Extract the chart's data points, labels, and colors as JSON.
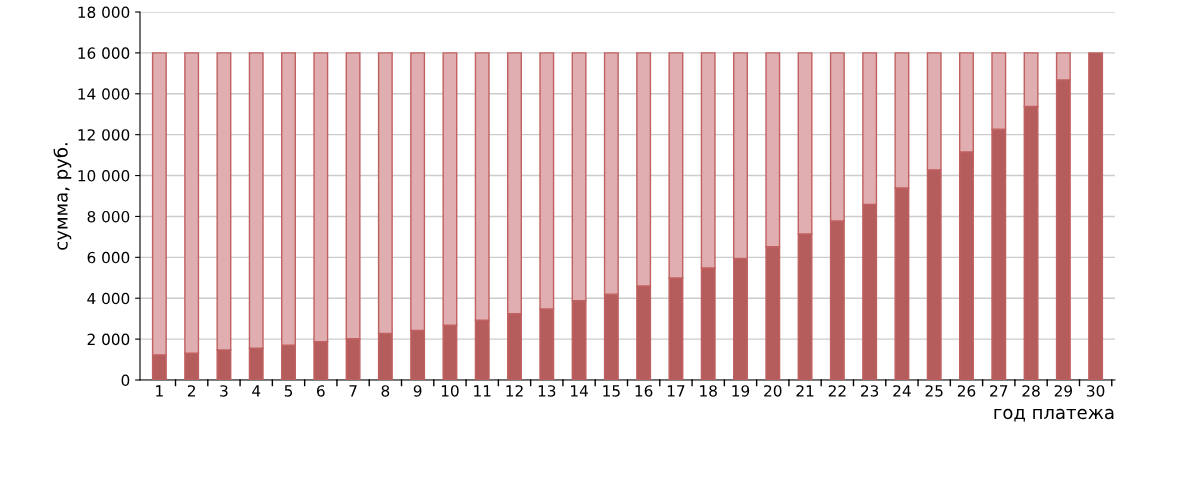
{
  "chart_data": {
    "type": "bar",
    "stacked": true,
    "xlabel": "год платежа",
    "ylabel": "сумма, руб.",
    "categories": [
      "1",
      "2",
      "3",
      "4",
      "5",
      "6",
      "7",
      "8",
      "9",
      "10",
      "11",
      "12",
      "13",
      "14",
      "15",
      "16",
      "17",
      "18",
      "19",
      "20",
      "21",
      "22",
      "23",
      "24",
      "25",
      "26",
      "27",
      "28",
      "29",
      "30"
    ],
    "series": [
      {
        "color": "#b55d5d",
        "values": [
          1230,
          1310,
          1470,
          1550,
          1700,
          1870,
          2020,
          2280,
          2430,
          2680,
          2920,
          3240,
          3470,
          3880,
          4200,
          4600,
          4990,
          5480,
          5950,
          6520,
          7140,
          7780,
          8590,
          9390,
          10280,
          11150,
          12270,
          13380,
          14680,
          16000
        ]
      },
      {
        "color": "#e0aeb0",
        "values": [
          14770,
          14690,
          14530,
          14450,
          14300,
          14130,
          13980,
          13720,
          13570,
          13320,
          13080,
          12760,
          12530,
          12120,
          11800,
          11400,
          11010,
          10520,
          10050,
          9480,
          8860,
          8220,
          7410,
          6610,
          5720,
          4850,
          3730,
          2620,
          1320,
          0
        ]
      }
    ],
    "ylim": [
      0,
      18000
    ],
    "yticks": [
      {
        "value": 0,
        "label": "0"
      },
      {
        "value": 2000,
        "label": "2 000"
      },
      {
        "value": 4000,
        "label": "4 000"
      },
      {
        "value": 6000,
        "label": "6 000"
      },
      {
        "value": 8000,
        "label": "8 000"
      },
      {
        "value": 10000,
        "label": "10 000"
      },
      {
        "value": 12000,
        "label": "12 000"
      },
      {
        "value": 14000,
        "label": "14 000"
      },
      {
        "value": 16000,
        "label": "16 000"
      },
      {
        "value": 18000,
        "label": "18 000"
      }
    ],
    "grid": "y"
  }
}
